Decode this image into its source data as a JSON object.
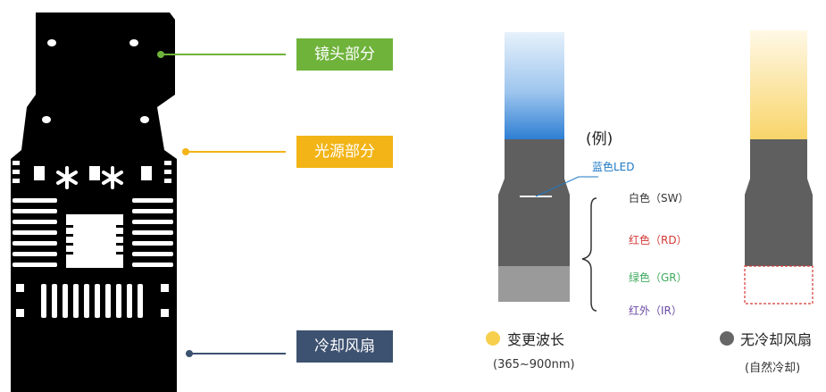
{
  "labels": {
    "lens": "镜头部分",
    "light_source": "光源部分",
    "cooling_fan": "冷却风扇"
  },
  "colors": {
    "lens": "#6fb33b",
    "light_source": "#f2b416",
    "cooling_fan": "#3d5170",
    "variable_dot": "#f7cf4d",
    "nocool_dot": "#666666"
  },
  "example": {
    "title": "(例)",
    "blue_led": "蓝色LED",
    "items": [
      "白色（SW）",
      "红色（RD）",
      "绿色（GR）",
      "红外（IR）"
    ]
  },
  "legend": {
    "variable": {
      "label": "变更波长",
      "sub": "(365~900nm)"
    },
    "nocool": {
      "label": "无冷却风扇",
      "sub": "(自然冷却)"
    }
  }
}
